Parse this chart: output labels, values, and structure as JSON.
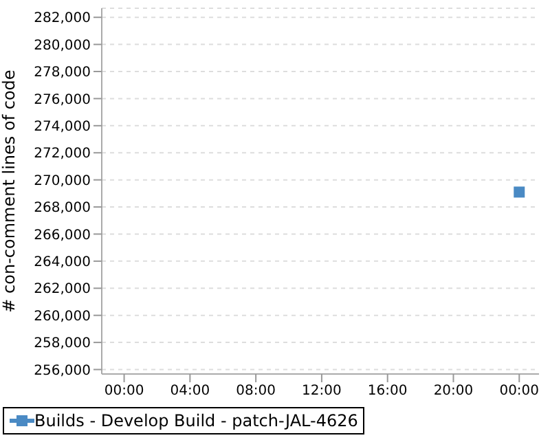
{
  "chart_data": {
    "type": "line",
    "ylabel": "# con-comment lines of code",
    "x": [
      24
    ],
    "series": [
      {
        "name": "Builds - Develop Build - patch-JAL-4626",
        "color": "#4a8ac4",
        "values": [
          269100
        ]
      }
    ],
    "xlim": [
      -1.36,
      25.2
    ],
    "xticks": [
      {
        "value": 0,
        "label": "00:00"
      },
      {
        "value": 4,
        "label": "04:00"
      },
      {
        "value": 8,
        "label": "08:00"
      },
      {
        "value": 12,
        "label": "12:00"
      },
      {
        "value": 16,
        "label": "16:00"
      },
      {
        "value": 20,
        "label": "20:00"
      },
      {
        "value": 24,
        "label": "00:00"
      }
    ],
    "ylim": [
      255670,
      282670
    ],
    "yticks": [
      {
        "value": 256000,
        "label": "256,000"
      },
      {
        "value": 258000,
        "label": "258,000"
      },
      {
        "value": 260000,
        "label": "260,000"
      },
      {
        "value": 262000,
        "label": "262,000"
      },
      {
        "value": 264000,
        "label": "264,000"
      },
      {
        "value": 266000,
        "label": "266,000"
      },
      {
        "value": 268000,
        "label": "268,000"
      },
      {
        "value": 270000,
        "label": "270,000"
      },
      {
        "value": 272000,
        "label": "272,000"
      },
      {
        "value": 274000,
        "label": "274,000"
      },
      {
        "value": 276000,
        "label": "276,000"
      },
      {
        "value": 278000,
        "label": "278,000"
      },
      {
        "value": 280000,
        "label": "280,000"
      },
      {
        "value": 282000,
        "label": "282,000"
      }
    ],
    "grid": "y",
    "legend": "bottom",
    "marker": "square"
  }
}
